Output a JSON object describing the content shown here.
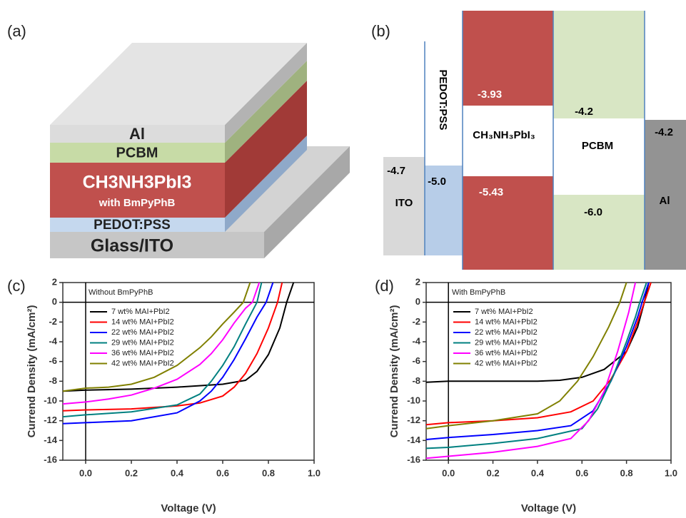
{
  "device": {
    "label": "(a)",
    "al": "Al",
    "pcbm": "PCBM",
    "perovskite": "CH3NH3PbI3",
    "additive": "with BmPyPhB",
    "pedot": "PEDOT:PSS",
    "substrate": "Glass/ITO"
  },
  "energy_diagram": {
    "label": "(b)",
    "ito": {
      "name": "ITO",
      "level": "-4.7"
    },
    "pedot": {
      "name": "PEDOT:PSS",
      "level": "-5.0"
    },
    "perovskite": {
      "name": "CH₃NH₃PbI₃",
      "lumo": "-3.93",
      "homo": "-5.43"
    },
    "pcbm": {
      "name": "PCBM",
      "lumo": "-4.2",
      "homo": "-6.0"
    },
    "al": {
      "name": "Al",
      "level": "-4.2"
    }
  },
  "chart_data": [
    {
      "type": "line",
      "label": "(c)",
      "annotation": "Without BmPyPhB",
      "xlabel": "Voltage (V)",
      "ylabel": "Currend Density (mA/cm²)",
      "xlim": [
        -0.1,
        1.0
      ],
      "ylim": [
        -16,
        2
      ],
      "xticks": [
        {
          "value": 0,
          "label": "0.0"
        },
        0.2,
        0.4,
        0.6,
        0.8,
        {
          "value": 1,
          "label": "1.0"
        }
      ],
      "yticks": [
        2,
        0,
        -2,
        -4,
        -6,
        -8,
        -10,
        -12,
        -14,
        -16
      ],
      "legend": "upper left",
      "series": [
        {
          "name": "7 wt% MAI+PbI2",
          "color": "#000000",
          "x": [
            -0.1,
            0,
            0.2,
            0.4,
            0.6,
            0.7,
            0.75,
            0.8,
            0.85,
            0.88,
            0.91
          ],
          "values": [
            -9.0,
            -8.9,
            -8.8,
            -8.6,
            -8.3,
            -7.9,
            -7.0,
            -5.3,
            -2.6,
            0,
            2
          ]
        },
        {
          "name": "14 wt% MAI+PbI2",
          "color": "#ff0000",
          "x": [
            -0.1,
            0,
            0.2,
            0.4,
            0.5,
            0.6,
            0.65,
            0.7,
            0.75,
            0.8,
            0.84,
            0.86
          ],
          "values": [
            -11.0,
            -10.9,
            -10.8,
            -10.5,
            -10.2,
            -9.5,
            -8.6,
            -7.2,
            -5.2,
            -2.6,
            0,
            2
          ]
        },
        {
          "name": "22 wt% MAI+PbI2",
          "color": "#0000ff",
          "x": [
            -0.1,
            0,
            0.2,
            0.4,
            0.5,
            0.55,
            0.6,
            0.65,
            0.7,
            0.75,
            0.79,
            0.82
          ],
          "values": [
            -12.3,
            -12.2,
            -12.0,
            -11.2,
            -10.0,
            -9.0,
            -7.6,
            -5.8,
            -3.7,
            -1.5,
            0,
            2
          ]
        },
        {
          "name": "29 wt% MAI+PbI2",
          "color": "#008080",
          "x": [
            -0.1,
            0,
            0.2,
            0.4,
            0.5,
            0.55,
            0.6,
            0.65,
            0.7,
            0.75,
            0.77
          ],
          "values": [
            -11.6,
            -11.4,
            -11.1,
            -10.4,
            -9.3,
            -8.0,
            -6.4,
            -4.5,
            -2.2,
            0,
            2
          ]
        },
        {
          "name": "36 wt% MAI+PbI2",
          "color": "#ff00ff",
          "x": [
            -0.1,
            0,
            0.1,
            0.2,
            0.3,
            0.4,
            0.5,
            0.55,
            0.6,
            0.65,
            0.7,
            0.73,
            0.76
          ],
          "values": [
            -10.3,
            -10.1,
            -9.8,
            -9.4,
            -8.7,
            -7.8,
            -6.3,
            -5.2,
            -3.8,
            -2.1,
            -0.6,
            0,
            2
          ]
        },
        {
          "name": "42 wt% MAI+PbI2",
          "color": "#808000",
          "x": [
            -0.1,
            0,
            0.1,
            0.2,
            0.3,
            0.4,
            0.5,
            0.55,
            0.6,
            0.65,
            0.69,
            0.72
          ],
          "values": [
            -9.0,
            -8.7,
            -8.6,
            -8.3,
            -7.6,
            -6.4,
            -4.6,
            -3.5,
            -2.2,
            -1.0,
            0,
            2
          ]
        }
      ]
    },
    {
      "type": "line",
      "label": "(d)",
      "annotation": "With BmPyPhB",
      "xlabel": "Voltage (V)",
      "ylabel": "Currend Density (mA/cm²)",
      "xlim": [
        -0.1,
        1.0
      ],
      "ylim": [
        -16,
        2
      ],
      "xticks": [
        {
          "value": 0,
          "label": "0.0"
        },
        0.2,
        0.4,
        0.6,
        0.8,
        {
          "value": 1,
          "label": "1.0"
        }
      ],
      "yticks": [
        2,
        0,
        -2,
        -4,
        -6,
        -8,
        -10,
        -12,
        -14,
        -16
      ],
      "legend": "upper left",
      "series": [
        {
          "name": "7 wt% MAI+PbI2",
          "color": "#000000",
          "x": [
            -0.1,
            0,
            0.2,
            0.4,
            0.5,
            0.6,
            0.7,
            0.8,
            0.85,
            0.88,
            0.9
          ],
          "values": [
            -8.1,
            -8.0,
            -8.0,
            -8.0,
            -7.9,
            -7.6,
            -6.8,
            -5.0,
            -2.5,
            0,
            2
          ]
        },
        {
          "name": "14 wt% MAI+PbI2",
          "color": "#ff0000",
          "x": [
            -0.1,
            0,
            0.2,
            0.4,
            0.55,
            0.65,
            0.73,
            0.8,
            0.85,
            0.88,
            0.91
          ],
          "values": [
            -12.4,
            -12.2,
            -12.0,
            -11.7,
            -11.1,
            -10.0,
            -7.8,
            -5.0,
            -2.0,
            0,
            2
          ]
        },
        {
          "name": "22 wt% MAI+PbI2",
          "color": "#0000ff",
          "x": [
            -0.1,
            0,
            0.2,
            0.4,
            0.55,
            0.65,
            0.73,
            0.8,
            0.85,
            0.87,
            0.9
          ],
          "values": [
            -13.9,
            -13.7,
            -13.4,
            -13.0,
            -12.5,
            -11.0,
            -8.0,
            -4.5,
            -1.5,
            0,
            2
          ]
        },
        {
          "name": "29 wt% MAI+PbI2",
          "color": "#008080",
          "x": [
            -0.1,
            0,
            0.2,
            0.4,
            0.6,
            0.67,
            0.74,
            0.8,
            0.84,
            0.86,
            0.89
          ],
          "values": [
            -14.8,
            -14.7,
            -14.3,
            -13.8,
            -12.8,
            -10.8,
            -7.5,
            -4.0,
            -1.5,
            0,
            2
          ]
        },
        {
          "name": "36 wt% MAI+PbI2",
          "color": "#ff00ff",
          "x": [
            -0.1,
            0,
            0.2,
            0.4,
            0.55,
            0.63,
            0.7,
            0.76,
            0.81,
            0.82,
            0.84
          ],
          "values": [
            -15.8,
            -15.6,
            -15.2,
            -14.6,
            -13.8,
            -12.0,
            -9.0,
            -5.0,
            -1.0,
            0,
            2
          ]
        },
        {
          "name": "42 wt% MAI+PbI2",
          "color": "#808000",
          "x": [
            -0.1,
            0,
            0.2,
            0.4,
            0.5,
            0.58,
            0.65,
            0.72,
            0.77,
            0.8
          ],
          "values": [
            -12.8,
            -12.5,
            -12.0,
            -11.3,
            -10.0,
            -8.0,
            -5.5,
            -2.5,
            0,
            2
          ]
        }
      ]
    }
  ]
}
